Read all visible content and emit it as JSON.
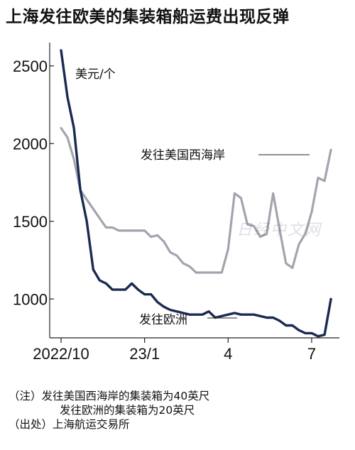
{
  "title": "上海发往欧美的集装箱船运费出现反弹",
  "watermark": "日经中文网",
  "colors": {
    "us_west": "#a2a4ae",
    "europe": "#1b2a52",
    "axis": "#222222"
  },
  "notes": {
    "note1": "（注）发往美国西海岸的集装箱为40英尺",
    "note2": "发往欧洲的集装箱为20英尺",
    "source": "（出处）上海航运交易所"
  },
  "chart_data": {
    "type": "line",
    "title": "上海发往欧美的集装箱船运费出现反弹",
    "ylabel": "美元/个",
    "ylim": [
      750,
      2650
    ],
    "yticks": [
      1000,
      1500,
      2000,
      2500
    ],
    "xlim": [
      0,
      43
    ],
    "xticks": [
      {
        "x": 0,
        "label": "2022/10"
      },
      {
        "x": 13,
        "label": "23/1"
      },
      {
        "x": 26,
        "label": "4"
      },
      {
        "x": 39,
        "label": "7"
      }
    ],
    "series": [
      {
        "name": "发往美国西海岸",
        "x": [
          0,
          1,
          2,
          3,
          4,
          5,
          6,
          7,
          8,
          9,
          10,
          11,
          12,
          13,
          14,
          15,
          16,
          17,
          18,
          19,
          20,
          21,
          22,
          23,
          24,
          25,
          26,
          27,
          28,
          29,
          30,
          31,
          32,
          33,
          34,
          35,
          36,
          37,
          38,
          39,
          40,
          41,
          42
        ],
        "values": [
          2100,
          2040,
          1900,
          1700,
          1640,
          1580,
          1520,
          1460,
          1460,
          1440,
          1440,
          1440,
          1440,
          1440,
          1400,
          1410,
          1370,
          1300,
          1280,
          1230,
          1210,
          1170,
          1170,
          1170,
          1170,
          1170,
          1320,
          1680,
          1650,
          1480,
          1470,
          1400,
          1420,
          1680,
          1450,
          1230,
          1200,
          1350,
          1420,
          1560,
          1780,
          1760,
          1960
        ]
      },
      {
        "name": "发往欧洲",
        "x": [
          0,
          1,
          2,
          3,
          4,
          5,
          6,
          7,
          8,
          9,
          10,
          11,
          12,
          13,
          14,
          15,
          16,
          17,
          18,
          19,
          20,
          21,
          22,
          23,
          24,
          25,
          26,
          27,
          28,
          29,
          30,
          31,
          32,
          33,
          34,
          35,
          36,
          37,
          38,
          39,
          40,
          41,
          42
        ],
        "values": [
          2600,
          2300,
          2100,
          1700,
          1500,
          1190,
          1120,
          1100,
          1060,
          1060,
          1060,
          1100,
          1060,
          1030,
          1030,
          980,
          950,
          930,
          920,
          910,
          900,
          900,
          900,
          920,
          880,
          890,
          900,
          910,
          900,
          900,
          900,
          890,
          880,
          880,
          860,
          830,
          830,
          800,
          780,
          780,
          760,
          770,
          1000
        ]
      }
    ]
  }
}
